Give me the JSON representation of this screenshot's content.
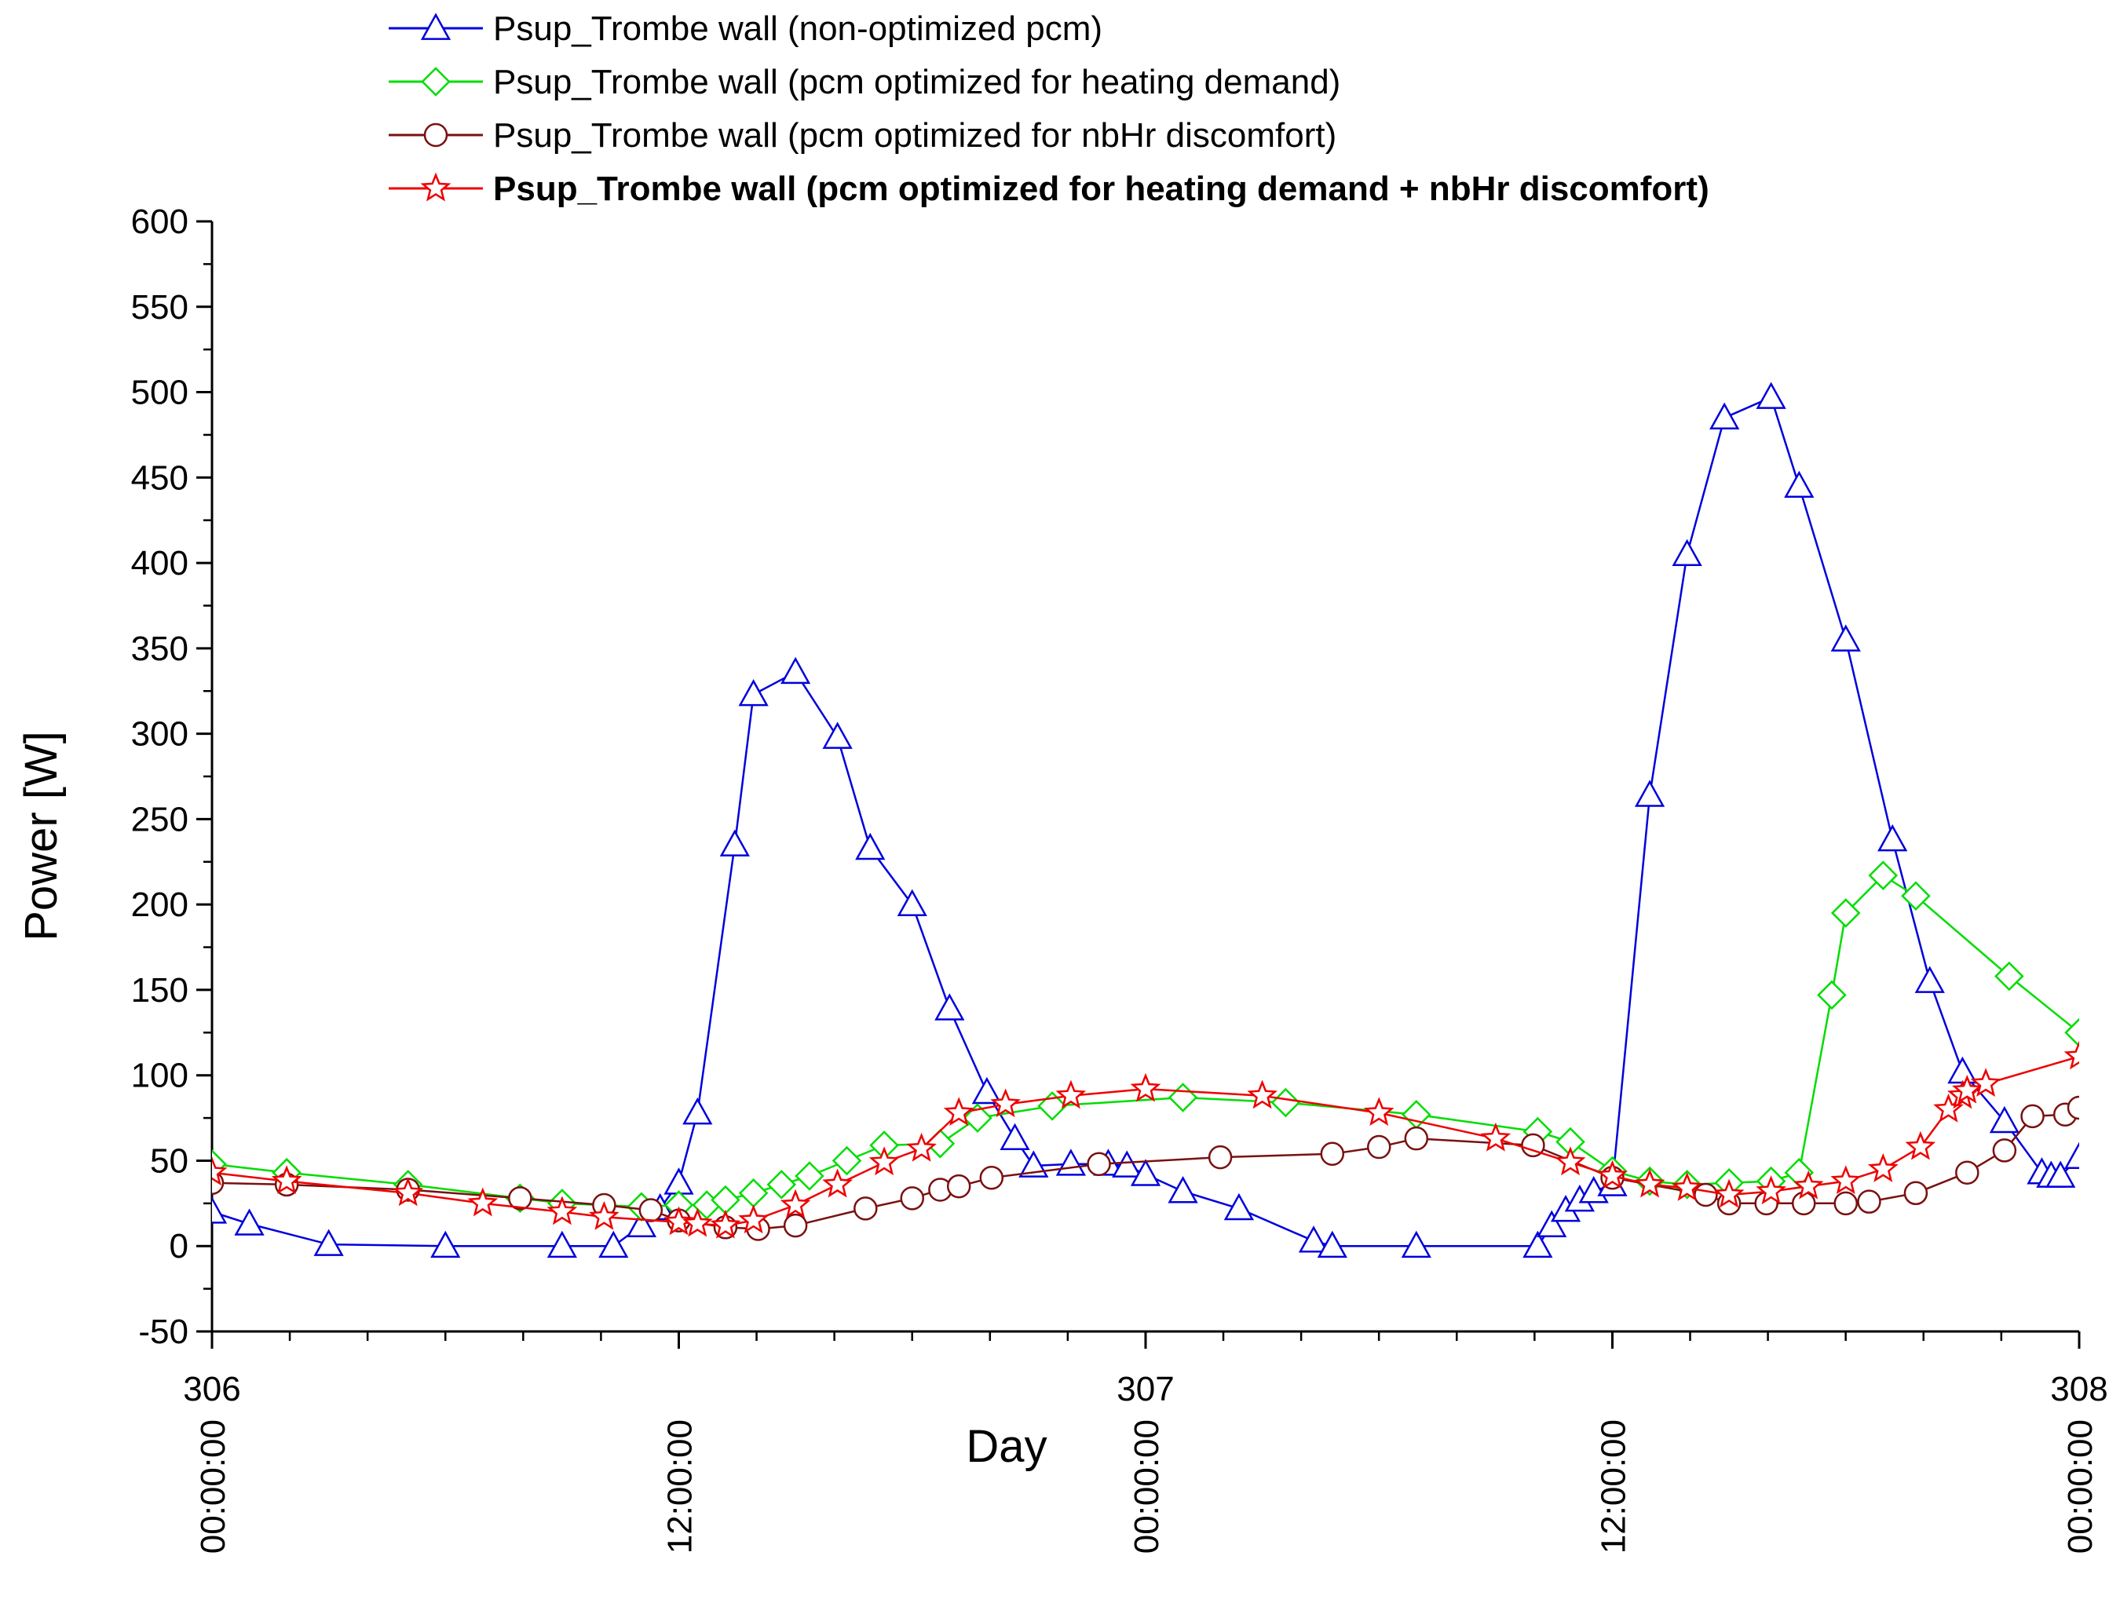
{
  "chart_data": {
    "type": "line",
    "title": "",
    "xlabel": "Day",
    "ylabel": "Power [W]",
    "xlim": [
      306,
      308
    ],
    "ylim": [
      -50,
      600
    ],
    "y_ticks": [
      -50,
      0,
      50,
      100,
      150,
      200,
      250,
      300,
      350,
      400,
      450,
      500,
      550,
      600
    ],
    "x_ticks": [
      {
        "value": 306,
        "day_label": "306",
        "time_label": "00:00:00"
      },
      {
        "value": 306.5,
        "day_label": "",
        "time_label": "12:00:00"
      },
      {
        "value": 307,
        "day_label": "307",
        "time_label": "00:00:00"
      },
      {
        "value": 307.5,
        "day_label": "",
        "time_label": "12:00:00"
      },
      {
        "value": 308,
        "day_label": "308",
        "time_label": "00:00:00"
      }
    ],
    "x_minor_step": 0.08333,
    "legend_position": "top",
    "series": [
      {
        "name": "Psup_Trombe wall (non-optimized pcm)",
        "color": "#0000dd",
        "marker": "triangle",
        "bold": false,
        "x": [
          306.0,
          306.04,
          306.125,
          306.25,
          306.375,
          306.43,
          306.46,
          306.48,
          306.5,
          306.52,
          306.56,
          306.58,
          306.625,
          306.67,
          306.705,
          306.75,
          306.79,
          306.83,
          306.86,
          306.88,
          306.92,
          306.96,
          306.98,
          307.0,
          307.04,
          307.1,
          307.18,
          307.2,
          307.29,
          307.42,
          307.435,
          307.45,
          307.465,
          307.48,
          307.5,
          307.54,
          307.58,
          307.62,
          307.67,
          307.7,
          307.75,
          307.8,
          307.84,
          307.875,
          307.92,
          307.96,
          307.97,
          307.98,
          308.0
        ],
        "y": [
          20,
          13,
          1,
          0,
          0,
          0,
          12,
          22,
          37,
          78,
          235,
          323,
          336,
          298,
          233,
          200,
          139,
          90,
          63,
          47,
          48,
          48,
          47,
          42,
          32,
          22,
          3,
          0,
          0,
          0,
          12,
          21,
          27,
          32,
          36,
          264,
          405,
          485,
          497,
          445,
          355,
          238,
          155,
          102,
          73,
          43,
          41,
          41,
          52
        ]
      },
      {
        "name": "Psup_Trombe wall (pcm optimized for heating demand)",
        "color": "#00dd00",
        "marker": "diamond",
        "bold": false,
        "x": [
          306.0,
          306.08,
          306.21,
          306.33,
          306.375,
          306.46,
          306.5,
          306.53,
          306.55,
          306.58,
          306.61,
          306.64,
          306.68,
          306.72,
          306.78,
          306.82,
          306.9,
          307.04,
          307.15,
          307.29,
          307.42,
          307.455,
          307.5,
          307.54,
          307.58,
          307.625,
          307.67,
          307.7,
          307.735,
          307.75,
          307.79,
          307.825,
          307.925,
          308.0
        ],
        "y": [
          48,
          43,
          36,
          28,
          25,
          23,
          24,
          24,
          27,
          31,
          36,
          41,
          50,
          59,
          60,
          75,
          82,
          87,
          84,
          77,
          67,
          61,
          44,
          38,
          36,
          37,
          38,
          43,
          147,
          195,
          217,
          205,
          158,
          125
        ]
      },
      {
        "name": "Psup_Trombe wall (pcm optimized for nbHr discomfort)",
        "color": "#7a1010",
        "marker": "circle",
        "bold": false,
        "x": [
          306.0,
          306.08,
          306.21,
          306.33,
          306.42,
          306.47,
          306.5,
          306.55,
          306.585,
          306.625,
          306.7,
          306.75,
          306.78,
          306.8,
          306.835,
          306.95,
          307.08,
          307.2,
          307.25,
          307.29,
          307.415,
          307.5,
          307.6,
          307.625,
          307.665,
          307.705,
          307.75,
          307.775,
          307.825,
          307.88,
          307.92,
          307.95,
          307.985,
          308.0
        ],
        "y": [
          37,
          36,
          33,
          28,
          24,
          21,
          15,
          11,
          10,
          12,
          22,
          28,
          33,
          35,
          40,
          48,
          52,
          54,
          58,
          63,
          59,
          40,
          30,
          25,
          25,
          25,
          25,
          26,
          31,
          43,
          56,
          76,
          77,
          81
        ]
      },
      {
        "name": "Psup_Trombe wall (pcm optimized for heating demand + nbHr discomfort)",
        "color": "#ee0000",
        "marker": "star",
        "bold": true,
        "x": [
          306.0,
          306.08,
          306.21,
          306.29,
          306.375,
          306.42,
          306.5,
          306.52,
          306.55,
          306.58,
          306.625,
          306.67,
          306.72,
          306.76,
          306.8,
          306.85,
          306.92,
          307.0,
          307.125,
          307.25,
          307.375,
          307.455,
          307.5,
          307.54,
          307.58,
          307.625,
          307.67,
          307.71,
          307.75,
          307.79,
          307.83,
          307.86,
          307.875,
          307.88,
          307.9,
          308.0
        ],
        "y": [
          43,
          38,
          31,
          25,
          20,
          17,
          14,
          13,
          12,
          15,
          24,
          36,
          49,
          57,
          78,
          83,
          88,
          92,
          88,
          78,
          63,
          49,
          41,
          36,
          34,
          30,
          32,
          35,
          38,
          45,
          58,
          80,
          88,
          91,
          95,
          111
        ]
      }
    ]
  }
}
